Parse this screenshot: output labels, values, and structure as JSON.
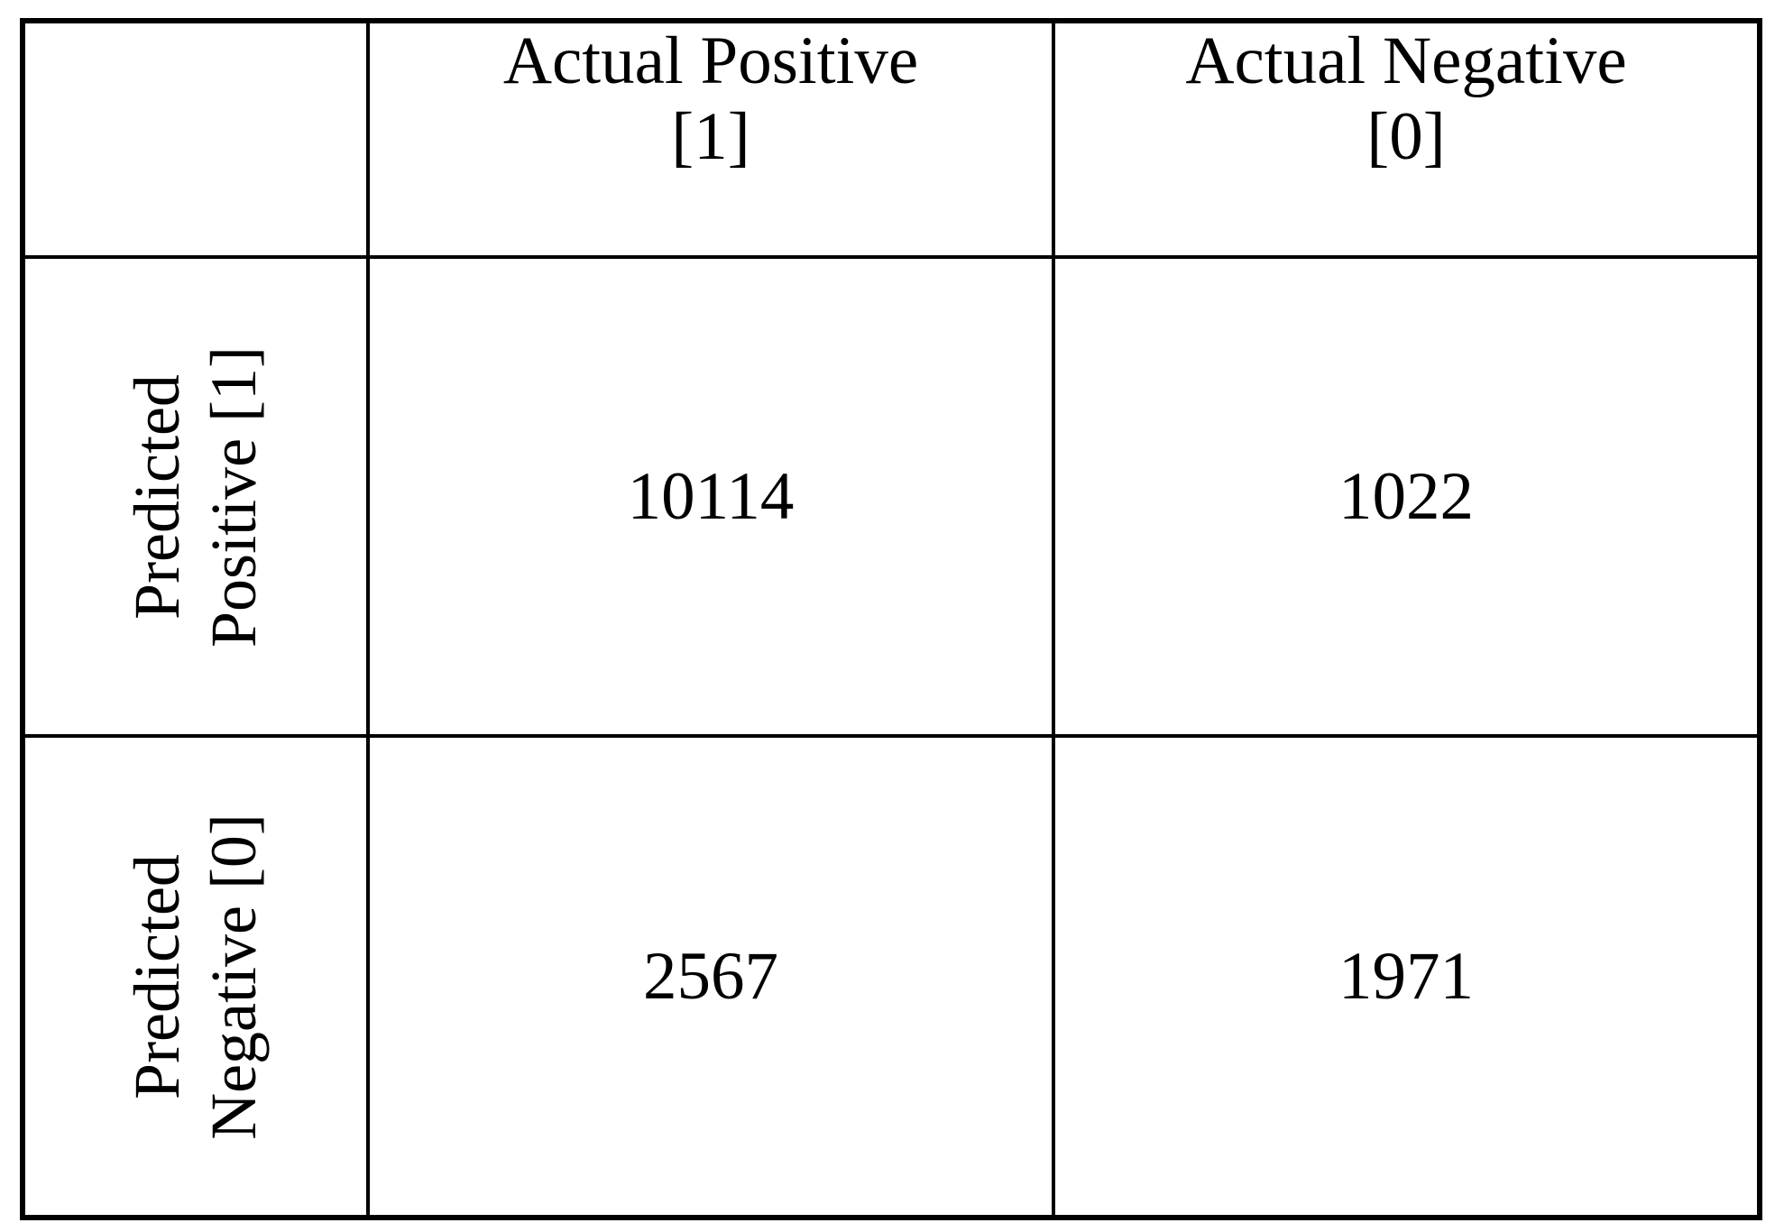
{
  "colors": {
    "border": "#000000",
    "background": "#ffffff",
    "text": "#000000"
  },
  "table": {
    "columns": [
      {
        "label": "Actual Positive",
        "bracket": "[1]"
      },
      {
        "label": "Actual Negative",
        "bracket": "[0]"
      }
    ],
    "rows": [
      {
        "label_line1": "Predicted",
        "label_line2": "Positive [1]",
        "cells": [
          "10114",
          "1022"
        ]
      },
      {
        "label_line1": "Predicted",
        "label_line2": "Negative [0]",
        "cells": [
          "2567",
          "1971"
        ]
      }
    ]
  },
  "chart_data": {
    "type": "table",
    "title": "",
    "columns": [
      "",
      "Actual Positive [1]",
      "Actual Negative [0]"
    ],
    "rows": [
      {
        "row_label": "Predicted Positive [1]",
        "true_positive": 10114,
        "false_positive": 1022
      },
      {
        "row_label": "Predicted Negative [0]",
        "false_negative": 2567,
        "true_negative": 1971
      }
    ],
    "values_matrix": [
      [
        10114,
        1022
      ],
      [
        2567,
        1971
      ]
    ],
    "layout": {
      "row_header_rotation_deg": -90,
      "grid": "on",
      "borders": "black"
    }
  }
}
